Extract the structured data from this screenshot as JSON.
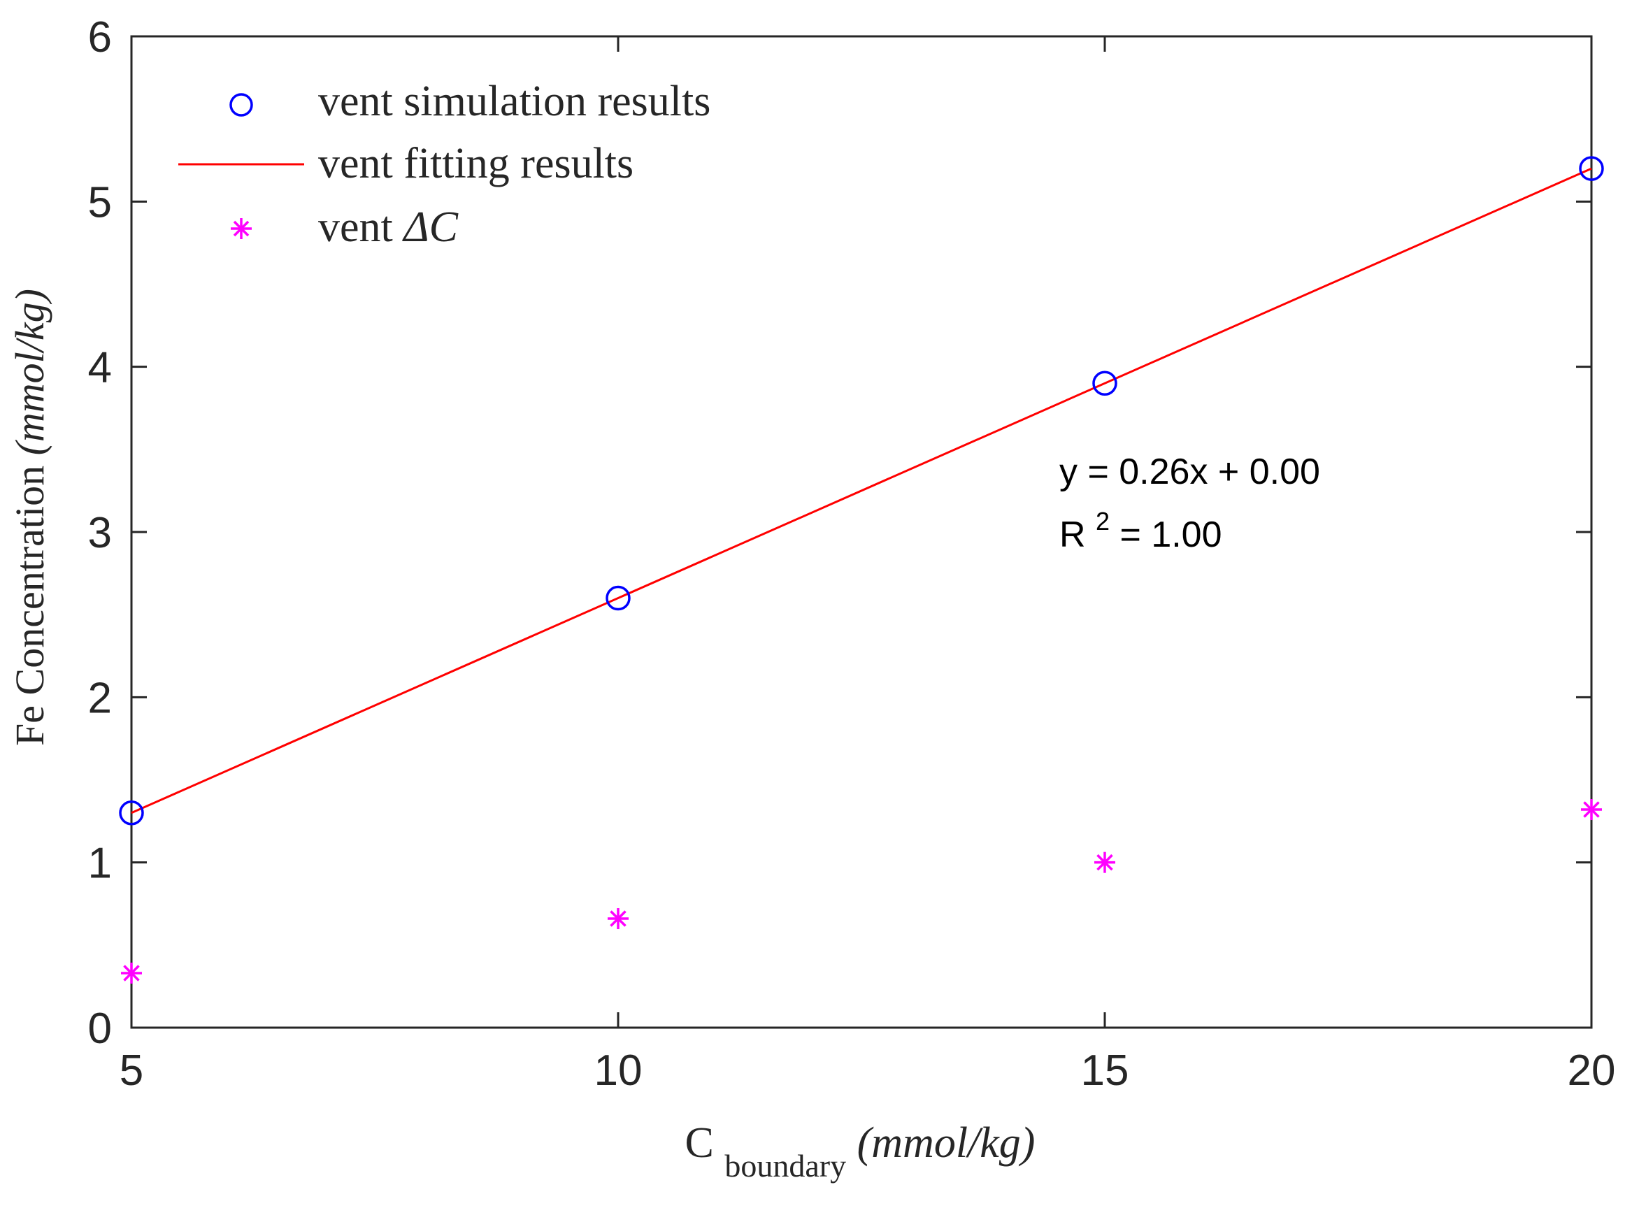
{
  "chart_data": {
    "type": "scatter",
    "title": "",
    "xlabel": {
      "main": "C",
      "subscript": "boundary",
      "unit": "(mmol/kg)"
    },
    "ylabel": {
      "main": "Fe Concentration",
      "unit": "(mmol/kg)"
    },
    "xlim": [
      5,
      20
    ],
    "ylim": [
      0,
      6
    ],
    "xticks": [
      5,
      10,
      15,
      20
    ],
    "yticks": [
      0,
      1,
      2,
      3,
      4,
      5,
      6
    ],
    "xtick_labels": [
      "5",
      "10",
      "15",
      "20"
    ],
    "ytick_labels": [
      "0",
      "1",
      "2",
      "3",
      "4",
      "5",
      "6"
    ],
    "grid": false,
    "legend_position": "top-left",
    "series": [
      {
        "name": "vent simulation results",
        "marker": "circle",
        "color": "#0000ff",
        "x": [
          5,
          10,
          15,
          20
        ],
        "y": [
          1.3,
          2.6,
          3.9,
          5.2
        ]
      },
      {
        "name": "vent fitting results",
        "marker": "line",
        "color": "#ff0000",
        "x": [
          5,
          20
        ],
        "y": [
          1.3,
          5.2
        ]
      },
      {
        "name_prefix": "vent ",
        "name_symbol": "ΔC",
        "marker": "asterisk",
        "color": "#ff00ff",
        "x": [
          5,
          10,
          15,
          20
        ],
        "y": [
          0.33,
          0.66,
          1.0,
          1.32
        ]
      }
    ],
    "annotations": {
      "equation": "y = 0.26x + 0.00",
      "r2_prefix": "R",
      "r2_sup": "2",
      "r2_value": " = 1.00"
    }
  }
}
